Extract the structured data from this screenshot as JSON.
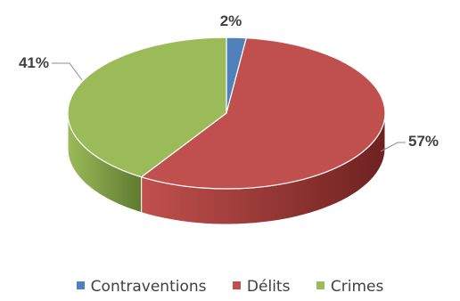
{
  "chart_data": {
    "type": "pie",
    "style": "3d",
    "categories": [
      "Contraventions",
      "Délits",
      "Crimes"
    ],
    "values": [
      2,
      57,
      41
    ],
    "value_labels": [
      "2%",
      "57%",
      "41%"
    ],
    "colors": [
      "#4F81BD",
      "#C0504D",
      "#9BBB59"
    ],
    "dark_colors": [
      "#30508A",
      "#6E2220",
      "#5E7A30"
    ],
    "legend_position": "bottom"
  }
}
